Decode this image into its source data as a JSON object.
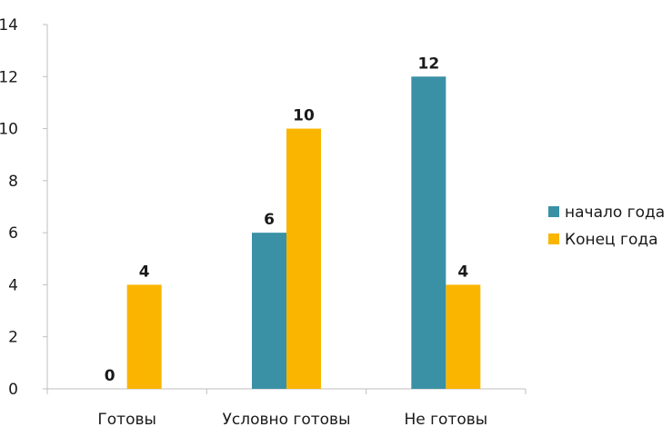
{
  "chart_data": {
    "type": "bar",
    "categories": [
      "Готовы",
      "Условно готовы",
      "Не готовы"
    ],
    "series": [
      {
        "name": "начало года",
        "color": "#3a91a6",
        "values": [
          0,
          6,
          12
        ]
      },
      {
        "name": "Конец года",
        "color": "#f9b500",
        "values": [
          4,
          10,
          4
        ]
      }
    ],
    "ylim": [
      0,
      14
    ],
    "yticks": [
      "0",
      "2",
      "4",
      "6",
      "8",
      "10",
      "12",
      "14"
    ],
    "grid": false,
    "legend_position": "right"
  }
}
